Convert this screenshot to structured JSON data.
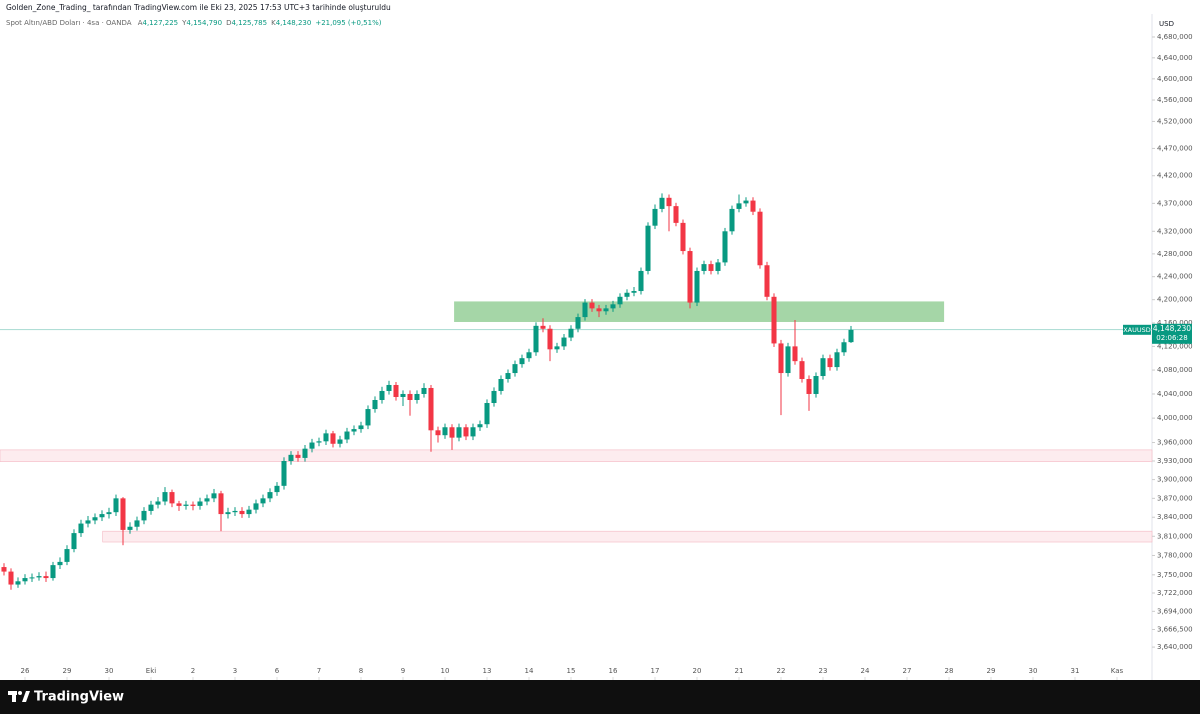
{
  "header": {
    "attribution": "Golden_Zone_Trading_  tarafından TradingView.com ile Eki 23, 2025 17:53 UTC+3 tarihinde oluşturuldu",
    "symbol": "Spot Altın/ABD Doları · 4sa · OANDA",
    "ohlc": [
      {
        "label": "A",
        "value": "4,127,225"
      },
      {
        "label": "Y",
        "value": "4,154,790"
      },
      {
        "label": "D",
        "value": "4,125,785"
      },
      {
        "label": "K",
        "value": "4,148,230"
      }
    ],
    "change": "+21,095 (+0,51%)"
  },
  "footer": {
    "brand": "TradingView"
  },
  "chart_data": {
    "type": "candlestick",
    "currency": "USD",
    "log_scale": true,
    "up_color": "#089981",
    "down_color": "#f23645",
    "ylim": [
      3591,
      4724.5
    ],
    "xlim": [
      -0.57,
      164
    ],
    "yticks": [
      {
        "value": 4680,
        "label": "4,680,000"
      },
      {
        "value": 4640,
        "label": "4,640,000"
      },
      {
        "value": 4600,
        "label": "4,600,000"
      },
      {
        "value": 4560,
        "label": "4,560,000"
      },
      {
        "value": 4520,
        "label": "4,520,000"
      },
      {
        "value": 4470,
        "label": "4,470,000"
      },
      {
        "value": 4420,
        "label": "4,420,000"
      },
      {
        "value": 4370,
        "label": "4,370,000"
      },
      {
        "value": 4320,
        "label": "4,320,000"
      },
      {
        "value": 4280,
        "label": "4,280,000"
      },
      {
        "value": 4240,
        "label": "4,240,000"
      },
      {
        "value": 4200,
        "label": "4,200,000"
      },
      {
        "value": 4160,
        "label": "4,160,000"
      },
      {
        "value": 4120,
        "label": "4,120,000"
      },
      {
        "value": 4080,
        "label": "4,080,000"
      },
      {
        "value": 4040,
        "label": "4,040,000"
      },
      {
        "value": 4000,
        "label": "4,000,000"
      },
      {
        "value": 3960,
        "label": "3,960,000"
      },
      {
        "value": 3930,
        "label": "3,930,000"
      },
      {
        "value": 3900,
        "label": "3,900,000"
      },
      {
        "value": 3870,
        "label": "3,870,000"
      },
      {
        "value": 3840,
        "label": "3,840,000"
      },
      {
        "value": 3810,
        "label": "3,810,000"
      },
      {
        "value": 3780,
        "label": "3,780,000"
      },
      {
        "value": 3750,
        "label": "3,750,000"
      },
      {
        "value": 3722,
        "label": "3,722,000"
      },
      {
        "value": 3694,
        "label": "3,694,000"
      },
      {
        "value": 3666.5,
        "label": "3,666,500"
      },
      {
        "value": 3640,
        "label": "3,640,000"
      }
    ],
    "xticks": [
      {
        "value": 3,
        "label": "26"
      },
      {
        "value": 9,
        "label": "29"
      },
      {
        "value": 15,
        "label": "30"
      },
      {
        "value": 21,
        "label": "Eki"
      },
      {
        "value": 27,
        "label": "2"
      },
      {
        "value": 33,
        "label": "3"
      },
      {
        "value": 39,
        "label": "6"
      },
      {
        "value": 45,
        "label": "7"
      },
      {
        "value": 51,
        "label": "8"
      },
      {
        "value": 57,
        "label": "9"
      },
      {
        "value": 63,
        "label": "10"
      },
      {
        "value": 69,
        "label": "13"
      },
      {
        "value": 75,
        "label": "14"
      },
      {
        "value": 81,
        "label": "15"
      },
      {
        "value": 87,
        "label": "16"
      },
      {
        "value": 93,
        "label": "17"
      },
      {
        "value": 99,
        "label": "20"
      },
      {
        "value": 105,
        "label": "21"
      },
      {
        "value": 111,
        "label": "22"
      },
      {
        "value": 117,
        "label": "23"
      },
      {
        "value": 123,
        "label": "24"
      },
      {
        "value": 129,
        "label": "27"
      },
      {
        "value": 135,
        "label": "28"
      },
      {
        "value": 141,
        "label": "29"
      },
      {
        "value": 147,
        "label": "30"
      },
      {
        "value": 153,
        "label": "31"
      },
      {
        "value": 159,
        "label": "Kas"
      }
    ],
    "open": [
      3762,
      3755,
      3735,
      3740,
      3745,
      3746,
      3748,
      3745,
      3765,
      3770,
      3790,
      3815,
      3830,
      3835,
      3840,
      3845,
      3848,
      3870,
      3820,
      3825,
      3835,
      3850,
      3860,
      3865,
      3880,
      3862,
      3858,
      3860,
      3858,
      3865,
      3870,
      3878,
      3845,
      3848,
      3850,
      3845,
      3852,
      3862,
      3870,
      3880,
      3890,
      3930,
      3940,
      3935,
      3950,
      3960,
      3962,
      3975,
      3958,
      3965,
      3978,
      3982,
      3988,
      4015,
      4030,
      4045,
      4055,
      4035,
      4040,
      4030,
      4040,
      4050,
      3980,
      3972,
      3985,
      3968,
      3985,
      3970,
      3985,
      3990,
      4025,
      4045,
      4065,
      4075,
      4090,
      4100,
      4110,
      4155,
      4150,
      4115,
      4120,
      4135,
      4150,
      4170,
      4195,
      4185,
      4180,
      4185,
      4192,
      4205,
      4212,
      4215,
      4250,
      4330,
      4360,
      4380,
      4365,
      4335,
      4285,
      4195,
      4250,
      4262,
      4250,
      4265,
      4320,
      4360,
      4370,
      4375,
      4355,
      4260,
      4205,
      4125,
      4075,
      4120,
      4095,
      4065,
      4040,
      4070,
      4100,
      4085,
      4110,
      4127.225
    ],
    "high": [
      3768,
      3760,
      3746,
      3751,
      3752,
      3754,
      3755,
      3770,
      3777,
      3796,
      3821,
      3836,
      3842,
      3846,
      3851,
      3855,
      3876,
      3872,
      3832,
      3841,
      3856,
      3866,
      3872,
      3888,
      3884,
      3866,
      3866,
      3865,
      3871,
      3876,
      3885,
      3882,
      3855,
      3856,
      3856,
      3858,
      3868,
      3876,
      3886,
      3896,
      3936,
      3946,
      3946,
      3956,
      3966,
      3968,
      3981,
      3979,
      3971,
      3984,
      3988,
      3994,
      4021,
      4036,
      4052,
      4062,
      4060,
      4046,
      4046,
      4046,
      4058,
      4055,
      3986,
      3991,
      3990,
      3991,
      3990,
      3991,
      3996,
      4031,
      4051,
      4071,
      4081,
      4096,
      4106,
      4116,
      4161,
      4168,
      4156,
      4126,
      4141,
      4156,
      4176,
      4201,
      4201,
      4191,
      4191,
      4198,
      4211,
      4218,
      4222,
      4256,
      4336,
      4368,
      4388,
      4386,
      4371,
      4341,
      4291,
      4256,
      4268,
      4268,
      4271,
      4326,
      4366,
      4386,
      4381,
      4381,
      4361,
      4266,
      4211,
      4131,
      4126,
      4165,
      4101,
      4071,
      4076,
      4106,
      4106,
      4116,
      4133,
      4154.79
    ],
    "low": [
      3749,
      3727,
      3730,
      3735,
      3739,
      3741,
      3739,
      3741,
      3759,
      3765,
      3785,
      3809,
      3824,
      3829,
      3834,
      3838,
      3842,
      3796,
      3814,
      3819,
      3829,
      3844,
      3854,
      3859,
      3856,
      3850,
      3852,
      3851,
      3852,
      3859,
      3864,
      3818,
      3838,
      3842,
      3839,
      3839,
      3846,
      3856,
      3864,
      3874,
      3884,
      3924,
      3929,
      3929,
      3944,
      3954,
      3956,
      3952,
      3952,
      3959,
      3972,
      3976,
      3982,
      4009,
      4024,
      4039,
      4029,
      4020,
      4004,
      4024,
      4034,
      3945,
      3960,
      3966,
      3948,
      3962,
      3964,
      3964,
      3979,
      3984,
      4019,
      4039,
      4059,
      4069,
      4084,
      4094,
      4104,
      4144,
      4095,
      4109,
      4114,
      4129,
      4144,
      4164,
      4179,
      4170,
      4174,
      4179,
      4186,
      4199,
      4206,
      4209,
      4244,
      4324,
      4354,
      4320,
      4329,
      4279,
      4185,
      4189,
      4244,
      4244,
      4244,
      4259,
      4314,
      4354,
      4364,
      4349,
      4254,
      4199,
      4119,
      4005,
      4069,
      4089,
      4059,
      4012,
      4034,
      4064,
      4079,
      4079,
      4104,
      4125.785
    ],
    "close": [
      3755,
      3735,
      3740,
      3745,
      3746,
      3748,
      3745,
      3765,
      3770,
      3790,
      3815,
      3830,
      3835,
      3840,
      3845,
      3848,
      3870,
      3820,
      3825,
      3835,
      3850,
      3860,
      3865,
      3880,
      3862,
      3858,
      3860,
      3858,
      3865,
      3870,
      3878,
      3845,
      3848,
      3850,
      3845,
      3852,
      3862,
      3870,
      3880,
      3890,
      3930,
      3940,
      3935,
      3950,
      3960,
      3962,
      3975,
      3958,
      3965,
      3978,
      3982,
      3988,
      4015,
      4030,
      4045,
      4055,
      4035,
      4040,
      4030,
      4040,
      4050,
      3980,
      3972,
      3985,
      3968,
      3985,
      3970,
      3985,
      3990,
      4025,
      4045,
      4065,
      4075,
      4090,
      4100,
      4110,
      4155,
      4150,
      4115,
      4120,
      4135,
      4150,
      4170,
      4195,
      4185,
      4180,
      4185,
      4192,
      4205,
      4212,
      4215,
      4250,
      4330,
      4360,
      4380,
      4365,
      4335,
      4285,
      4195,
      4250,
      4262,
      4250,
      4265,
      4320,
      4360,
      4370,
      4375,
      4355,
      4260,
      4205,
      4125,
      4075,
      4120,
      4095,
      4065,
      4040,
      4070,
      4100,
      4085,
      4110,
      4127,
      4148.23
    ],
    "zones": [
      {
        "ylim": [
          4161.6,
          4197
        ],
        "x": [
          64.3,
          134.3
        ],
        "color": "#a5d6a7"
      },
      {
        "ylim": [
          3929,
          3948
        ],
        "x": [
          -0.57,
          164
        ],
        "color": "#fdecef"
      },
      {
        "ylim": [
          3801,
          3818
        ],
        "x": [
          14.1,
          164
        ],
        "color": "#fdecef"
      }
    ],
    "last_price": {
      "value": 4148.23,
      "symbol": "XAUUSD",
      "label": "4,148,230",
      "countdown": "02:06:28",
      "color": "#089981"
    }
  }
}
